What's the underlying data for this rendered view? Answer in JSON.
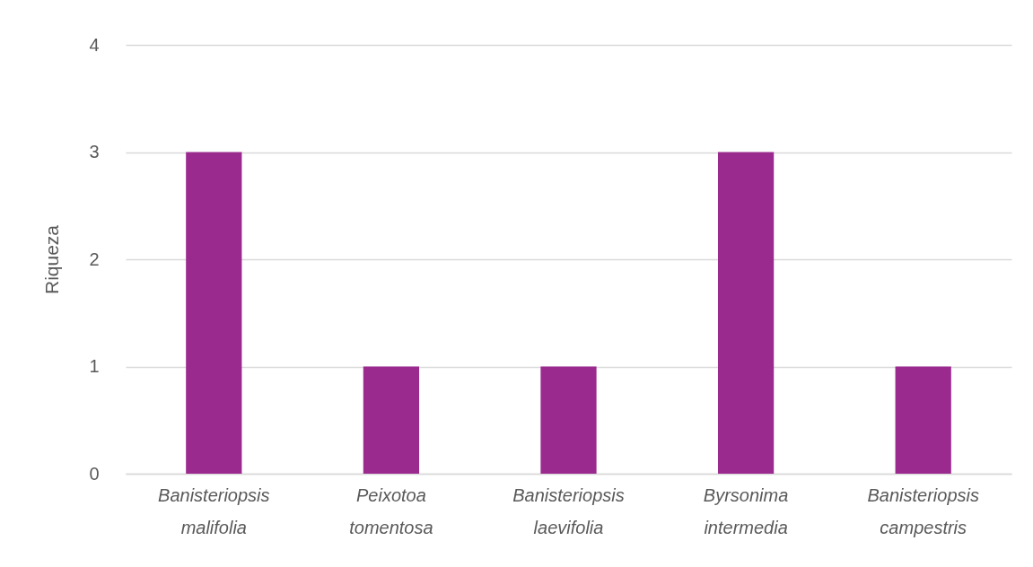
{
  "chart_data": {
    "type": "bar",
    "ylabel": "Riqueza",
    "categories": [
      "Banisteriopsis malifolia",
      "Peixotoa tomentosa",
      "Banisteriopsis laevifolia",
      "Byrsonima intermedia",
      "Banisteriopsis campestris"
    ],
    "values": [
      3,
      1,
      1,
      3,
      1
    ],
    "color": "#9b2a8f",
    "ylim": [
      0,
      4
    ],
    "yticks": [
      0,
      1,
      2,
      3,
      4
    ],
    "grid": "y"
  }
}
